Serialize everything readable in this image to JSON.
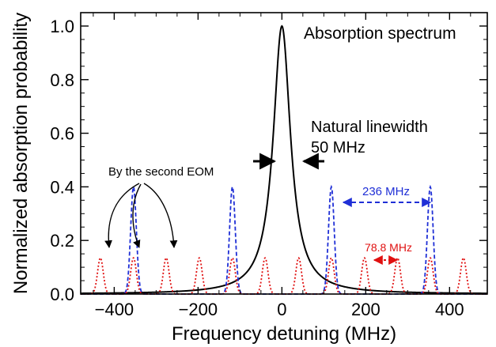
{
  "chart_data": {
    "type": "line",
    "title": "",
    "xlabel": "Frequency detuning (MHz)",
    "ylabel": "Normalized absorption probability",
    "xlim": [
      -480,
      490
    ],
    "ylim": [
      0,
      1.05
    ],
    "xticks": [
      -400,
      -200,
      0,
      200,
      400
    ],
    "xtick_labels": [
      "−400",
      "−200",
      "0",
      "200",
      "400"
    ],
    "yticks": [
      0,
      0.2,
      0.4,
      0.6,
      0.8,
      1.0
    ],
    "ytick_labels": [
      "0.0",
      "0.2",
      "0.4",
      "0.6",
      "0.8",
      "1.0"
    ],
    "grid": false,
    "series": [
      {
        "name": "Absorption spectrum",
        "kind": "lorentzian",
        "center": 0,
        "fwhm": 50,
        "peak": 1.0,
        "color": "#000000",
        "style": "solid"
      },
      {
        "name": "",
        "kind": "gaussian-comb",
        "centers": [
          -354,
          -118,
          118,
          354
        ],
        "width": 16,
        "peak": 0.4,
        "color": "#1f2fd6",
        "style": "dashed"
      },
      {
        "name": "",
        "kind": "gaussian-comb",
        "centers": [
          -433,
          -354,
          -276,
          -197,
          -118,
          -40,
          40,
          118,
          197,
          276,
          354,
          433
        ],
        "width": 16,
        "peak": 0.135,
        "color": "#e01010",
        "style": "dotted"
      }
    ],
    "annotations": {
      "absorption_label": "Absorption spectrum",
      "linewidth_label_line1": "Natural linewidth",
      "linewidth_label_line2": "50 MHz",
      "eom_label": "By the second EOM",
      "blue_spacing_label": "236 MHz",
      "red_spacing_label": "78.8 MHz"
    }
  }
}
